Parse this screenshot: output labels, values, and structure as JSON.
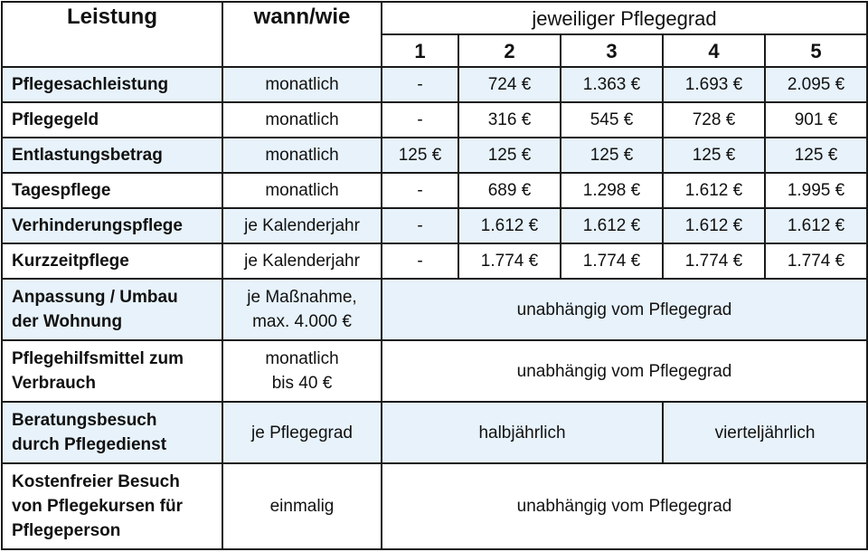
{
  "header": {
    "col_leistung": "Leistung",
    "col_wann": "wann/wie",
    "col_pflegegrad": "jeweiliger Pflegegrad",
    "grades": [
      "1",
      "2",
      "3",
      "4",
      "5"
    ]
  },
  "rows": [
    {
      "label": "Pflegesachleistung",
      "when": "monatlich",
      "values": [
        "-",
        "724 €",
        "1.363 €",
        "1.693 €",
        "2.095 €"
      ]
    },
    {
      "label": "Pflegegeld",
      "when": "monatlich",
      "values": [
        "-",
        "316 €",
        "545 €",
        "728 €",
        "901 €"
      ]
    },
    {
      "label": "Entlastungsbetrag",
      "when": "monatlich",
      "values": [
        "125 €",
        "125 €",
        "125 €",
        "125 €",
        "125 €"
      ]
    },
    {
      "label": "Tagespflege",
      "when": "monatlich",
      "values": [
        "-",
        "689 €",
        "1.298 €",
        "1.612 €",
        "1.995 €"
      ]
    },
    {
      "label": "Verhinderungspflege",
      "when": "je Kalenderjahr",
      "values": [
        "-",
        "1.612 €",
        "1.612 €",
        "1.612 €",
        "1.612 €"
      ]
    },
    {
      "label": "Kurzzeitpflege",
      "when": "je Kalenderjahr",
      "values": [
        "-",
        "1.774 €",
        "1.774 €",
        "1.774 €",
        "1.774 €"
      ]
    }
  ],
  "merged_rows": {
    "anpassung": {
      "label_1": "Anpassung / Umbau",
      "label_2": "der Wohnung",
      "when_1": "je Maßnahme,",
      "when_2": "max. 4.000 €",
      "value": "unabhängig vom Pflegegrad"
    },
    "hilfsmittel": {
      "label_1": "Pflegehilfsmittel zum",
      "label_2": "Verbrauch",
      "when_1": "monatlich",
      "when_2": "bis 40 €",
      "value": "unabhängig vom Pflegegrad"
    },
    "beratung": {
      "label_1": "Beratungsbesuch",
      "label_2": "durch Pflegedienst",
      "when": "je Pflegegrad",
      "value_a": "halbjährlich",
      "value_b": "vierteljährlich"
    },
    "kurse": {
      "label_1": "Kostenfreier Besuch",
      "label_2": "von Pflegekursen für",
      "label_3": "Pflegeperson",
      "when": "einmalig",
      "value": "unabhängig vom Pflegegrad"
    }
  },
  "colors": {
    "shade": "#e7f2fa",
    "border": "#1a1a1a"
  }
}
